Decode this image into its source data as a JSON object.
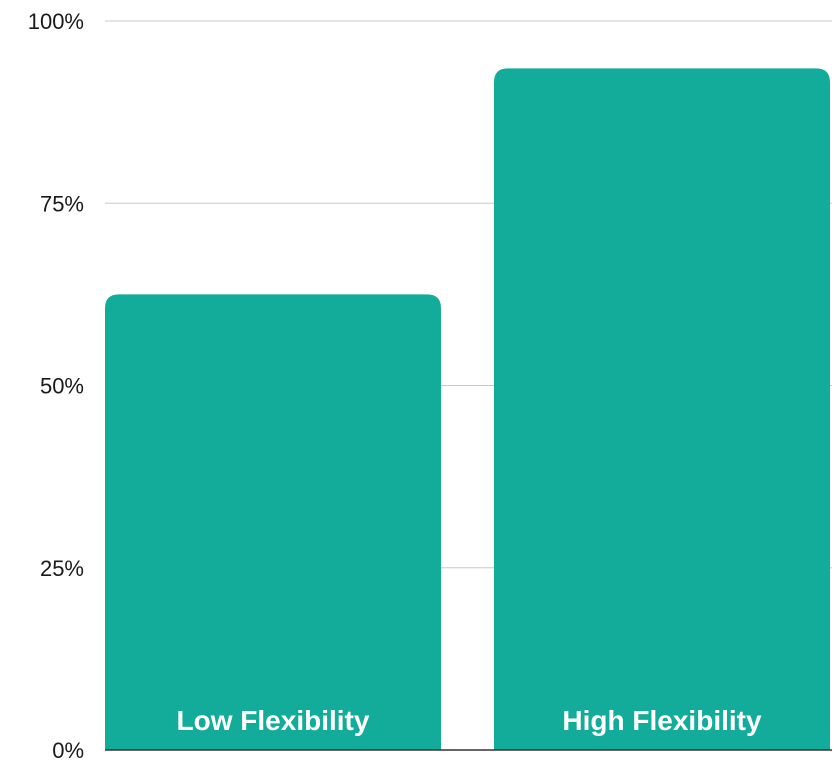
{
  "chart_data": {
    "type": "bar",
    "categories": [
      "Low Flexibility",
      "High Flexibility"
    ],
    "values": [
      62.5,
      93.5
    ],
    "ylim": [
      0,
      100
    ],
    "yticks": [
      0,
      25,
      50,
      75,
      100
    ],
    "ytick_labels": [
      "0%",
      "25%",
      "50%",
      "75%",
      "100%"
    ],
    "grid": true,
    "legend": "none",
    "title": "",
    "xlabel": "",
    "ylabel": ""
  },
  "colors": {
    "bar": "#13ac9a",
    "grid": "#c8c8c8",
    "axis": "#333333",
    "bar_label": "#ffffff",
    "tick_label": "#1a1a1a"
  }
}
